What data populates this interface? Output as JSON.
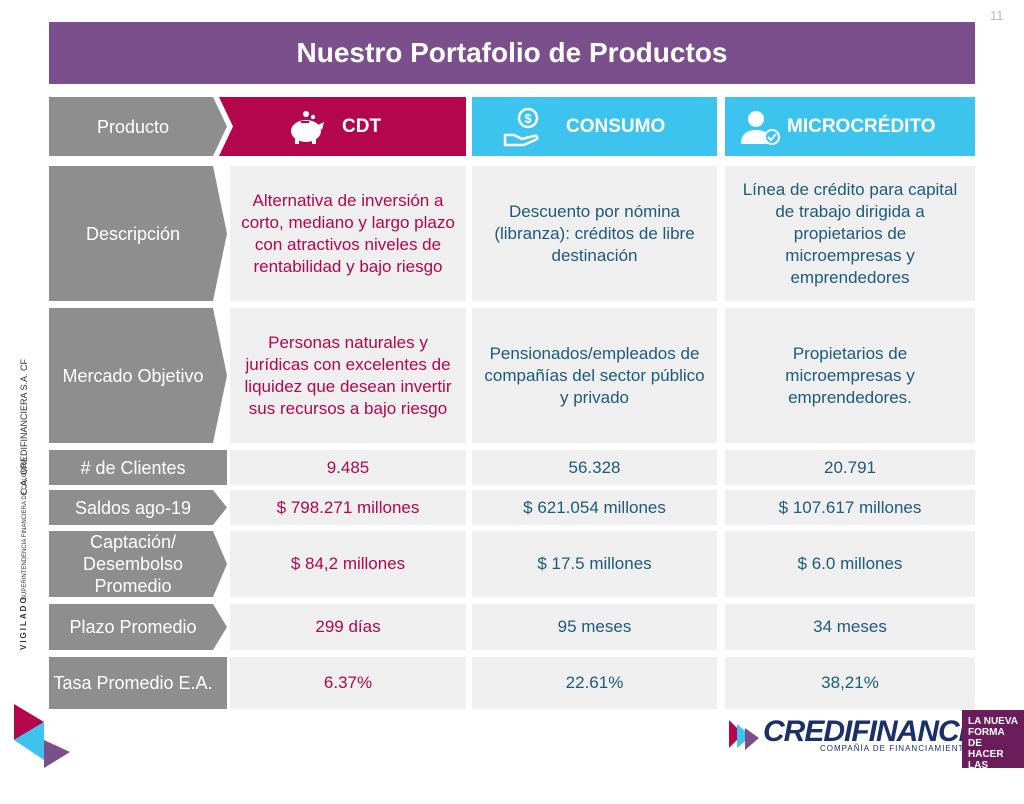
{
  "page_number": "11",
  "title": "Nuestro Portafolio de Productos",
  "header": {
    "label": "Producto",
    "cdt": "CDT",
    "consumo": "CONSUMO",
    "microcredito": "MICROCRÉDITO"
  },
  "rows": {
    "descripcion": {
      "label": "Descripción",
      "cdt": "Alternativa de inversión a corto, mediano y largo plazo con atractivos niveles de rentabilidad y bajo riesgo",
      "consumo": "Descuento por nómina (libranza): créditos de libre destinación",
      "micro": "Línea de crédito para capital de trabajo dirigida a propietarios de microempresas y emprendedores"
    },
    "mercado": {
      "label": "Mercado Objetivo",
      "cdt": "Personas naturales y jurídicas con excelentes de liquidez que desean invertir sus recursos a bajo riesgo",
      "consumo": "Pensionados/empleados de compañías del sector público y privado",
      "micro": "Propietarios de microempresas y emprendedores."
    },
    "clientes": {
      "label": "# de Clientes",
      "cdt": "9.485",
      "consumo": "56.328",
      "micro": "20.791"
    },
    "saldos": {
      "label": "Saldos ago-19",
      "cdt": "$ 798.271 millones",
      "consumo": "$ 621.054 millones",
      "micro": "$ 107.617 millones"
    },
    "captacion": {
      "label": "Captación/ Desembolso Promedio",
      "cdt": "$ 84,2 millones",
      "consumo": "$ 17.5 millones",
      "micro": "$ 6.0 millones"
    },
    "plazo": {
      "label": "Plazo Promedio",
      "cdt": "299 días",
      "consumo": "95 meses",
      "micro": "34 meses"
    },
    "tasa": {
      "label": "Tasa Promedio E.A.",
      "cdt": "6.37%",
      "consumo": "22.61%",
      "micro": "38,21%"
    }
  },
  "side": {
    "company": "C.A. CREDIFINANCIERA S.A. CF",
    "superintendencia": "SUPERINTENDENCIA FINANCIERA DE COLOMBIA",
    "vigilado": "VIGILADO"
  },
  "footer": {
    "logo_name": "CREDIFINANCIERA",
    "logo_sub": "COMPAÑÍA DE FINANCIAMIENTO",
    "slogan": "LA NUEVA FORMA DE HACER LAS COSAS, COMO ANTES."
  },
  "colors": {
    "title_bg": "#7b4f8c",
    "cdt": "#b3064d",
    "blue": "#3dc4ee",
    "label_gray": "#8e8e8e"
  }
}
